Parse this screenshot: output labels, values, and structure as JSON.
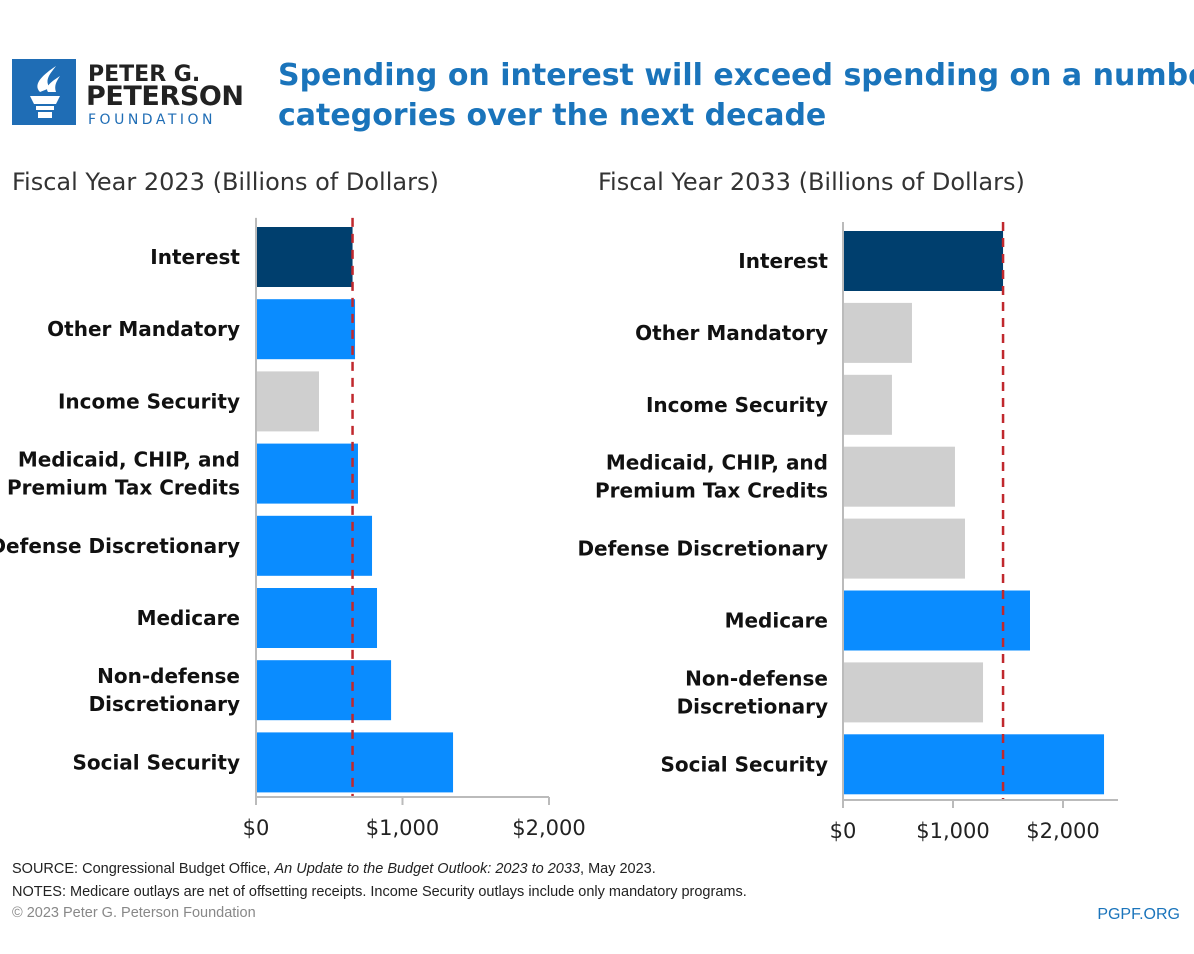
{
  "logo": {
    "line1": "PETER G.",
    "line2": "PETERSON",
    "line3": "FOUNDATION"
  },
  "title_lines": [
    "Spending on interest will exceed spending on a number of",
    "categories over the next decade"
  ],
  "colors": {
    "interest": "#003f6e",
    "highlight": "#0a8cff",
    "other": "#cfcfcf",
    "reference": "#c0282d",
    "title": "#1a74bb"
  },
  "chart_data": [
    {
      "type": "bar",
      "orientation": "horizontal",
      "title": "Fiscal Year 2023 (Billions of Dollars)",
      "categories": [
        "Interest",
        "Other Mandatory",
        "Income Security",
        "Medicaid, CHIP, and\nPremium Tax Credits",
        "Defense Discretionary",
        "Medicare",
        "Non-defense\nDiscretionary",
        "Social Security"
      ],
      "values": [
        659,
        676,
        430,
        696,
        792,
        826,
        922,
        1345
      ],
      "bar_colors": [
        "interest",
        "highlight",
        "other",
        "highlight",
        "highlight",
        "highlight",
        "highlight",
        "highlight"
      ],
      "reference_line": 659,
      "xlim": [
        0,
        2000
      ],
      "xticks": [
        0,
        1000,
        2000
      ],
      "xtick_labels": [
        "$0",
        "$1,000",
        "$2,000"
      ]
    },
    {
      "type": "bar",
      "orientation": "horizontal",
      "title": "Fiscal Year 2033 (Billions of Dollars)",
      "categories": [
        "Interest",
        "Other Mandatory",
        "Income Security",
        "Medicaid, CHIP, and\nPremium Tax Credits",
        "Defense Discretionary",
        "Medicare",
        "Non-defense\nDiscretionary",
        "Social Security"
      ],
      "values": [
        1455,
        627,
        445,
        1018,
        1109,
        1700,
        1273,
        2373
      ],
      "bar_colors": [
        "interest",
        "other",
        "other",
        "other",
        "other",
        "highlight",
        "other",
        "highlight"
      ],
      "reference_line": 1455,
      "xlim": [
        0,
        2500
      ],
      "xticks": [
        0,
        1000,
        2000
      ],
      "xtick_labels": [
        "$0",
        "$1,000",
        "$2,000"
      ]
    }
  ],
  "footer": {
    "source_label": "SOURCE: Congressional Budget Office, ",
    "source_italic": "An Update to the Budget Outlook: 2023 to 2033",
    "source_end": ", May 2023.",
    "notes": "NOTES: Medicare outlays are net of offsetting receipts. Income Security outlays include only mandatory programs.",
    "copyright": "© 2023 Peter G. Peterson Foundation",
    "site": "PGPF.ORG"
  }
}
